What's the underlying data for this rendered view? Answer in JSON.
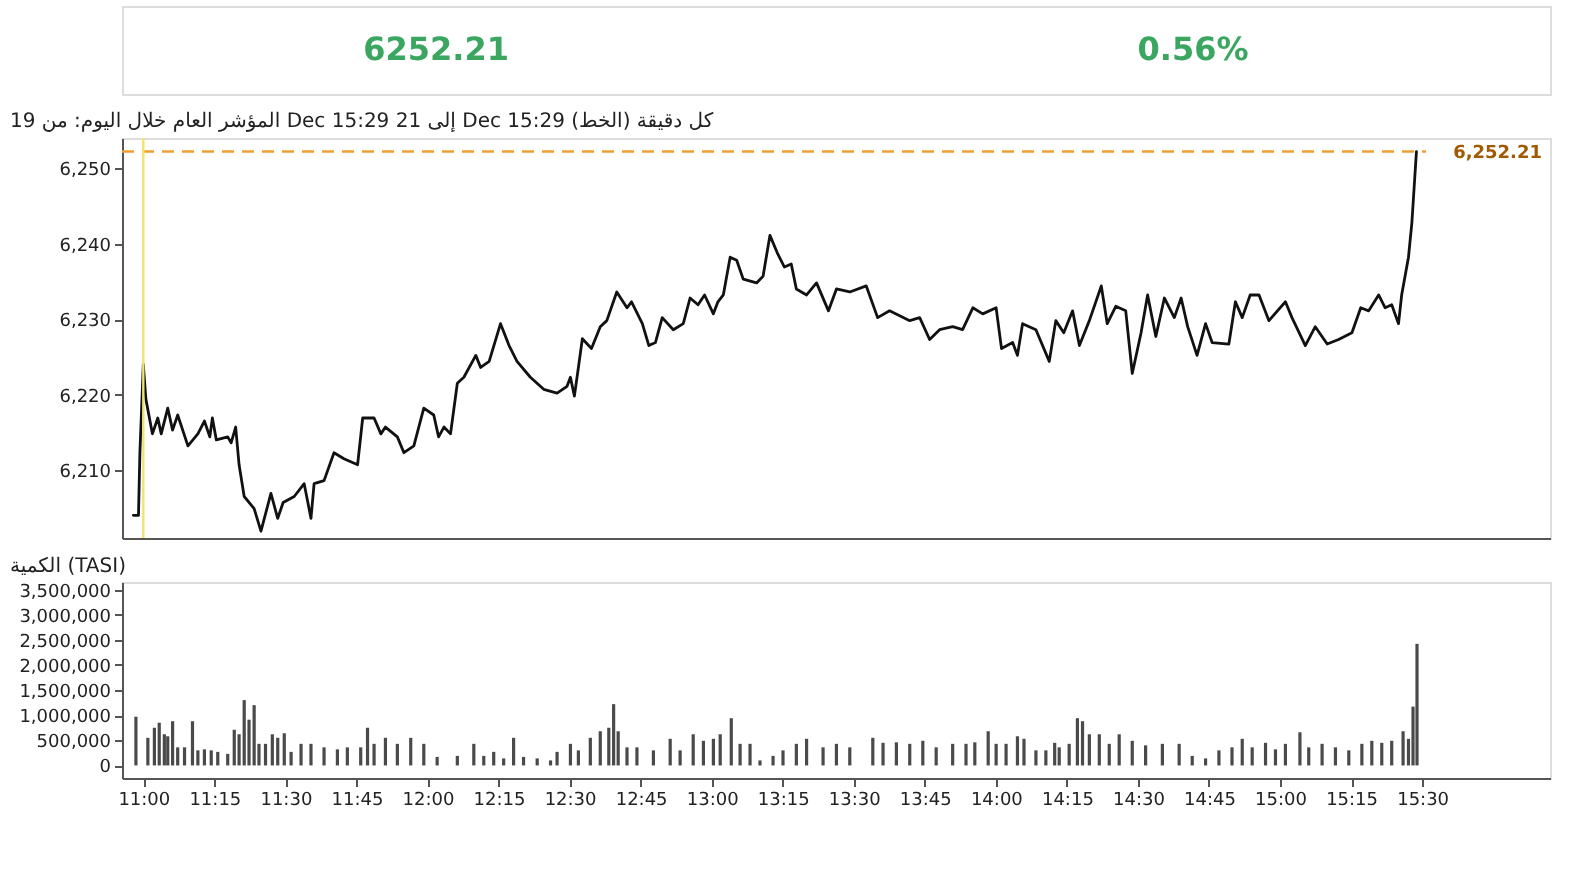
{
  "chart_data": [
    {
      "type": "line",
      "title": "المؤشر العام خلال اليوم: من 19 Dec 15:29 إلى 21 Dec 15:29 (الخط) كل دقيقة",
      "annotations": [
        "6252.21",
        "0.56%"
      ],
      "color": "#111111",
      "line_style": "solid",
      "x": [
        10.965,
        10.983,
        10.988,
        11.0,
        11.009,
        11.032,
        11.051,
        11.063,
        11.086,
        11.103,
        11.121,
        11.157,
        11.192,
        11.215,
        11.234,
        11.243,
        11.257,
        11.297,
        11.309,
        11.325,
        11.337,
        11.355,
        11.39,
        11.414,
        11.449,
        11.473,
        11.492,
        11.531,
        11.566,
        11.59,
        11.601,
        11.636,
        11.671,
        11.706,
        11.754,
        11.772,
        11.812,
        11.836,
        11.852,
        11.894,
        11.917,
        11.952,
        11.987,
        12.022,
        12.039,
        12.058,
        12.081,
        12.105,
        12.128,
        12.17,
        12.187,
        12.217,
        12.257,
        12.287,
        12.315,
        12.362,
        12.409,
        12.456,
        12.491,
        12.503,
        12.517,
        12.545,
        12.577,
        12.608,
        12.631,
        12.666,
        12.702,
        12.718,
        12.756,
        12.779,
        12.802,
        12.826,
        12.865,
        12.9,
        12.924,
        12.952,
        12.975,
        13.006,
        13.022,
        13.041,
        13.065,
        13.088,
        13.111,
        13.158,
        13.181,
        13.205,
        13.233,
        13.256,
        13.28,
        13.298,
        13.334,
        13.369,
        13.411,
        13.439,
        13.486,
        13.544,
        13.584,
        13.626,
        13.697,
        13.732,
        13.767,
        13.802,
        13.848,
        13.883,
        13.919,
        13.954,
        14.001,
        14.02,
        14.059,
        14.076,
        14.094,
        14.141,
        14.188,
        14.211,
        14.239,
        14.27,
        14.294,
        14.329,
        14.371,
        14.392,
        14.422,
        14.457,
        14.48,
        14.511,
        14.534,
        14.563,
        14.593,
        14.628,
        14.652,
        14.675,
        14.708,
        14.738,
        14.761,
        14.82,
        14.843,
        14.867,
        14.895,
        14.926,
        14.961,
        15.019,
        15.042,
        15.089,
        15.124,
        15.166,
        15.206,
        15.253,
        15.284,
        15.312,
        15.347,
        15.37,
        15.393,
        15.417,
        15.428,
        15.452,
        15.464,
        15.48
      ],
      "values": [
        6204.0,
        6204.0,
        6212.3,
        6224.0,
        6219.4,
        6214.8,
        6216.9,
        6214.8,
        6218.2,
        6215.3,
        6217.3,
        6213.2,
        6214.8,
        6216.5,
        6214.4,
        6216.9,
        6214.0,
        6214.4,
        6213.6,
        6215.7,
        6210.7,
        6206.5,
        6204.9,
        6201.9,
        6206.9,
        6203.6,
        6205.7,
        6206.5,
        6208.2,
        6203.6,
        6208.2,
        6208.6,
        6212.3,
        6211.5,
        6210.7,
        6216.9,
        6216.9,
        6214.8,
        6215.7,
        6214.4,
        6212.3,
        6213.2,
        6218.2,
        6217.3,
        6214.4,
        6215.7,
        6214.8,
        6221.5,
        6222.3,
        6225.2,
        6223.6,
        6224.4,
        6229.4,
        6226.5,
        6224.4,
        6222.3,
        6220.7,
        6220.2,
        6221.1,
        6222.3,
        6219.8,
        6227.4,
        6226.1,
        6229.0,
        6229.8,
        6233.6,
        6231.5,
        6232.3,
        6229.4,
        6226.5,
        6226.9,
        6230.2,
        6228.6,
        6229.4,
        6232.8,
        6231.9,
        6233.2,
        6230.7,
        6232.3,
        6233.2,
        6238.2,
        6237.8,
        6235.3,
        6234.8,
        6235.7,
        6241.1,
        6238.6,
        6236.9,
        6237.3,
        6234.0,
        6233.2,
        6234.8,
        6231.1,
        6234.0,
        6233.6,
        6234.4,
        6230.2,
        6231.1,
        6229.8,
        6230.2,
        6227.3,
        6228.6,
        6229.0,
        6228.6,
        6231.5,
        6230.7,
        6231.5,
        6226.1,
        6226.9,
        6225.2,
        6229.4,
        6228.6,
        6224.4,
        6229.8,
        6228.2,
        6231.1,
        6226.5,
        6229.8,
        6234.4,
        6229.4,
        6231.7,
        6231.1,
        6222.8,
        6228.2,
        6233.2,
        6227.7,
        6232.8,
        6230.2,
        6232.8,
        6229.0,
        6225.2,
        6229.4,
        6226.9,
        6226.7,
        6232.3,
        6230.2,
        6233.2,
        6233.2,
        6229.8,
        6232.3,
        6230.2,
        6226.5,
        6229.0,
        6226.7,
        6227.3,
        6228.2,
        6231.5,
        6231.1,
        6233.2,
        6231.5,
        6231.9,
        6229.4,
        6233.2,
        6238.2,
        6242.8,
        6252.2
      ],
      "xlim": [
        10.925,
        15.95
      ],
      "ylim": [
        6201,
        6254
      ],
      "yticks": [
        {
          "value": 6210,
          "label": "6,210"
        },
        {
          "value": 6220,
          "label": "6,220"
        },
        {
          "value": 6230,
          "label": "6,230"
        },
        {
          "value": 6240,
          "label": "6,240"
        },
        {
          "value": 6250,
          "label": "6,250"
        }
      ],
      "tick_labels": "y",
      "ref_lines": [
        {
          "axis": "y",
          "value": 6252.21,
          "label": "6,252.21",
          "color": "#f0a030",
          "line_style": "dashed"
        },
        {
          "axis": "x",
          "value": 11,
          "color": "#f2e36b"
        }
      ]
    },
    {
      "type": "bar",
      "title": "الكمية (TASI)",
      "color": "#4a4a4a",
      "x": [
        10.974,
        11.016,
        11.039,
        11.056,
        11.074,
        11.086,
        11.103,
        11.121,
        11.145,
        11.173,
        11.192,
        11.215,
        11.239,
        11.262,
        11.297,
        11.32,
        11.337,
        11.355,
        11.372,
        11.39,
        11.407,
        11.43,
        11.454,
        11.473,
        11.496,
        11.52,
        11.555,
        11.59,
        11.636,
        11.683,
        11.718,
        11.765,
        11.789,
        11.812,
        11.852,
        11.894,
        11.941,
        11.987,
        12.034,
        12.105,
        12.163,
        12.198,
        12.233,
        12.268,
        12.303,
        12.338,
        12.386,
        12.433,
        12.456,
        12.503,
        12.531,
        12.573,
        12.608,
        12.638,
        12.655,
        12.671,
        12.702,
        12.737,
        12.795,
        12.854,
        12.889,
        12.935,
        12.971,
        13.006,
        13.03,
        13.069,
        13.1,
        13.135,
        13.17,
        13.216,
        13.251,
        13.298,
        13.334,
        13.392,
        13.439,
        13.486,
        13.567,
        13.603,
        13.65,
        13.697,
        13.743,
        13.79,
        13.848,
        13.895,
        13.926,
        13.973,
        14.001,
        14.036,
        14.076,
        14.099,
        14.141,
        14.176,
        14.207,
        14.223,
        14.258,
        14.287,
        14.305,
        14.329,
        14.364,
        14.399,
        14.434,
        14.48,
        14.527,
        14.586,
        14.645,
        14.691,
        14.738,
        14.785,
        14.831,
        14.867,
        14.902,
        14.949,
        14.984,
        15.019,
        15.07,
        15.101,
        15.148,
        15.195,
        15.242,
        15.288,
        15.323,
        15.358,
        15.393,
        15.433,
        15.452,
        15.468,
        15.482
      ],
      "values": [
        970000,
        550000,
        750000,
        850000,
        620000,
        580000,
        880000,
        360000,
        360000,
        880000,
        300000,
        320000,
        300000,
        270000,
        230000,
        710000,
        620000,
        1300000,
        910000,
        1200000,
        430000,
        430000,
        620000,
        550000,
        640000,
        270000,
        430000,
        430000,
        360000,
        320000,
        360000,
        360000,
        750000,
        430000,
        550000,
        430000,
        550000,
        430000,
        170000,
        190000,
        430000,
        190000,
        270000,
        140000,
        550000,
        170000,
        140000,
        100000,
        270000,
        430000,
        300000,
        550000,
        680000,
        750000,
        1220000,
        680000,
        360000,
        360000,
        300000,
        530000,
        300000,
        620000,
        490000,
        530000,
        620000,
        940000,
        430000,
        430000,
        100000,
        190000,
        300000,
        430000,
        530000,
        360000,
        430000,
        360000,
        550000,
        450000,
        460000,
        430000,
        490000,
        360000,
        430000,
        430000,
        460000,
        680000,
        430000,
        430000,
        580000,
        530000,
        300000,
        300000,
        450000,
        360000,
        430000,
        940000,
        880000,
        620000,
        620000,
        430000,
        620000,
        490000,
        400000,
        430000,
        430000,
        190000,
        140000,
        300000,
        360000,
        530000,
        360000,
        450000,
        320000,
        430000,
        660000,
        360000,
        430000,
        360000,
        300000,
        430000,
        490000,
        450000,
        490000,
        680000,
        530000,
        1170000,
        2420000
      ],
      "xlim": [
        10.925,
        15.95
      ],
      "xticks": [
        {
          "value": 11,
          "label": "11:00"
        },
        {
          "value": 11.25,
          "label": "11:15"
        },
        {
          "value": 11.5,
          "label": "11:30"
        },
        {
          "value": 11.75,
          "label": "11:45"
        },
        {
          "value": 12,
          "label": "12:00"
        },
        {
          "value": 12.25,
          "label": "12:15"
        },
        {
          "value": 12.5,
          "label": "12:30"
        },
        {
          "value": 12.75,
          "label": "12:45"
        },
        {
          "value": 13,
          "label": "13:00"
        },
        {
          "value": 13.25,
          "label": "13:15"
        },
        {
          "value": 13.5,
          "label": "13:30"
        },
        {
          "value": 13.75,
          "label": "13:45"
        },
        {
          "value": 14,
          "label": "14:00"
        },
        {
          "value": 14.25,
          "label": "14:15"
        },
        {
          "value": 14.5,
          "label": "14:30"
        },
        {
          "value": 14.75,
          "label": "14:45"
        },
        {
          "value": 15,
          "label": "15:00"
        },
        {
          "value": 15.25,
          "label": "15:15"
        },
        {
          "value": 15.5,
          "label": "15:30"
        }
      ],
      "ylim": [
        -250000,
        3650000
      ],
      "yticks": [
        0,
        {
          "value": 500000,
          "label": "500,000"
        },
        {
          "value": 1000000,
          "label": "1,000,000"
        },
        {
          "value": 1500000,
          "label": "1,500,000"
        },
        {
          "value": 2000000,
          "label": "2,000,000"
        },
        {
          "value": 2500000,
          "label": "2,500,000"
        },
        {
          "value": 3000000,
          "label": "3,000,000"
        },
        {
          "value": 3500000,
          "label": "3,500,000"
        }
      ]
    }
  ]
}
